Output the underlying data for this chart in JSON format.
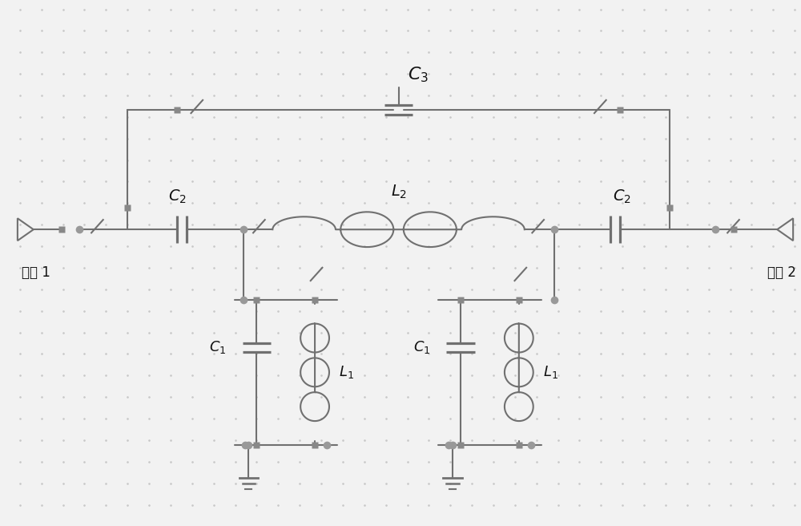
{
  "bg_color": "#f2f2f2",
  "line_color": "#707070",
  "dot_color": "#999999",
  "square_color": "#888888",
  "text_color": "#111111",
  "figsize": [
    10.0,
    6.56
  ],
  "dpi": 100,
  "grid_dot_color": "#c8c8c8",
  "wire_lw": 1.5,
  "comp_lw": 1.5
}
